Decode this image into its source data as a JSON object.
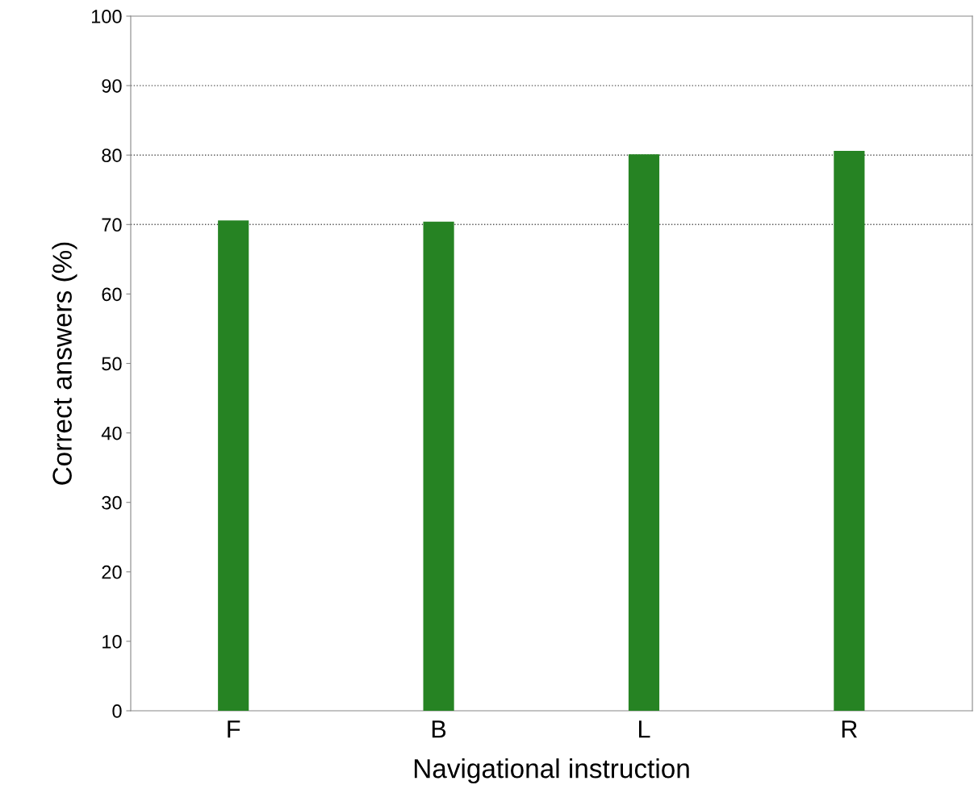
{
  "chart_data": {
    "type": "bar",
    "xlabel": "Navigational instruction",
    "ylabel": "Correct answers (%)",
    "categories": [
      "F",
      "B",
      "L",
      "R"
    ],
    "values": [
      70.6,
      70.4,
      80.1,
      80.6
    ],
    "color": "#268323",
    "ylim": [
      0,
      100
    ],
    "yticks": [
      0,
      10,
      20,
      30,
      40,
      50,
      60,
      70,
      80,
      90,
      100
    ],
    "grid": false,
    "ref_lines": [
      {
        "axis": "y",
        "value": 70,
        "color": "#555555",
        "line_style": "dotted"
      },
      {
        "axis": "y",
        "value": 80,
        "color": "#555555",
        "line_style": "dotted"
      },
      {
        "axis": "y",
        "value": 90,
        "color": "#555555",
        "line_style": "dotted"
      }
    ]
  }
}
